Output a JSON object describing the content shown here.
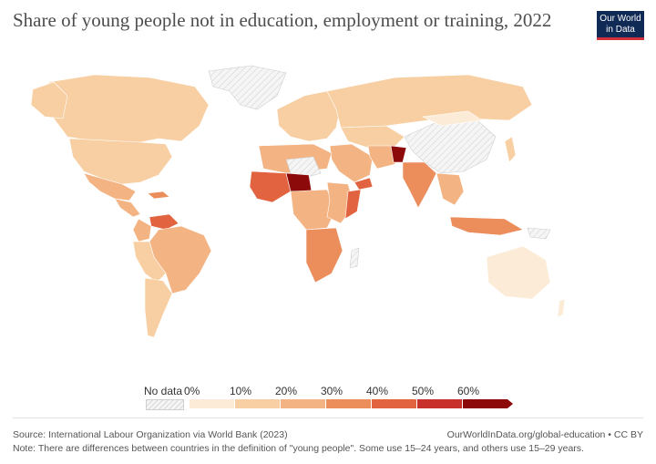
{
  "header": {
    "title": "Share of young people not in education, employment or training, 2022",
    "logo_line1": "Our World",
    "logo_line2": "in Data"
  },
  "legend": {
    "no_data_label": "No data",
    "ticks": [
      "0%",
      "10%",
      "20%",
      "30%",
      "40%",
      "50%",
      "60%"
    ],
    "colors": [
      "#fcebd6",
      "#f8cfa2",
      "#f3b383",
      "#ec8d5c",
      "#e2633f",
      "#c8302b",
      "#8c0a0a"
    ]
  },
  "footer": {
    "source": "Source: International Labour Organization via World Bank (2023)",
    "url": "OurWorldInData.org/global-education • CC BY",
    "note": "Note: There are differences between countries in the definition of \"young people\". Some use 15–24 years, and others use 15–29 years."
  },
  "colors": {
    "no_data_fill": "#efefef",
    "border": "#ffffff"
  }
}
